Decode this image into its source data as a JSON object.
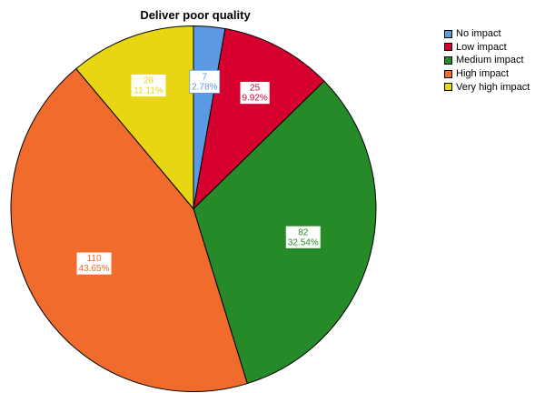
{
  "chart_data": {
    "type": "pie",
    "title": "Deliver poor quality",
    "legend_position": "top-right",
    "slices": [
      {
        "label": "No impact",
        "value": 7,
        "percent": "2.78%",
        "color": "#5b9ae3"
      },
      {
        "label": "Low impact",
        "value": 25,
        "percent": "9.92%",
        "color": "#d6002f"
      },
      {
        "label": "Medium impact",
        "value": 82,
        "percent": "32.54%",
        "color": "#278a29"
      },
      {
        "label": "High impact",
        "value": 110,
        "percent": "43.65%",
        "color": "#f06b2c"
      },
      {
        "label": "Very high impact",
        "value": 28,
        "percent": "11.11%",
        "color": "#e8d612"
      }
    ]
  }
}
